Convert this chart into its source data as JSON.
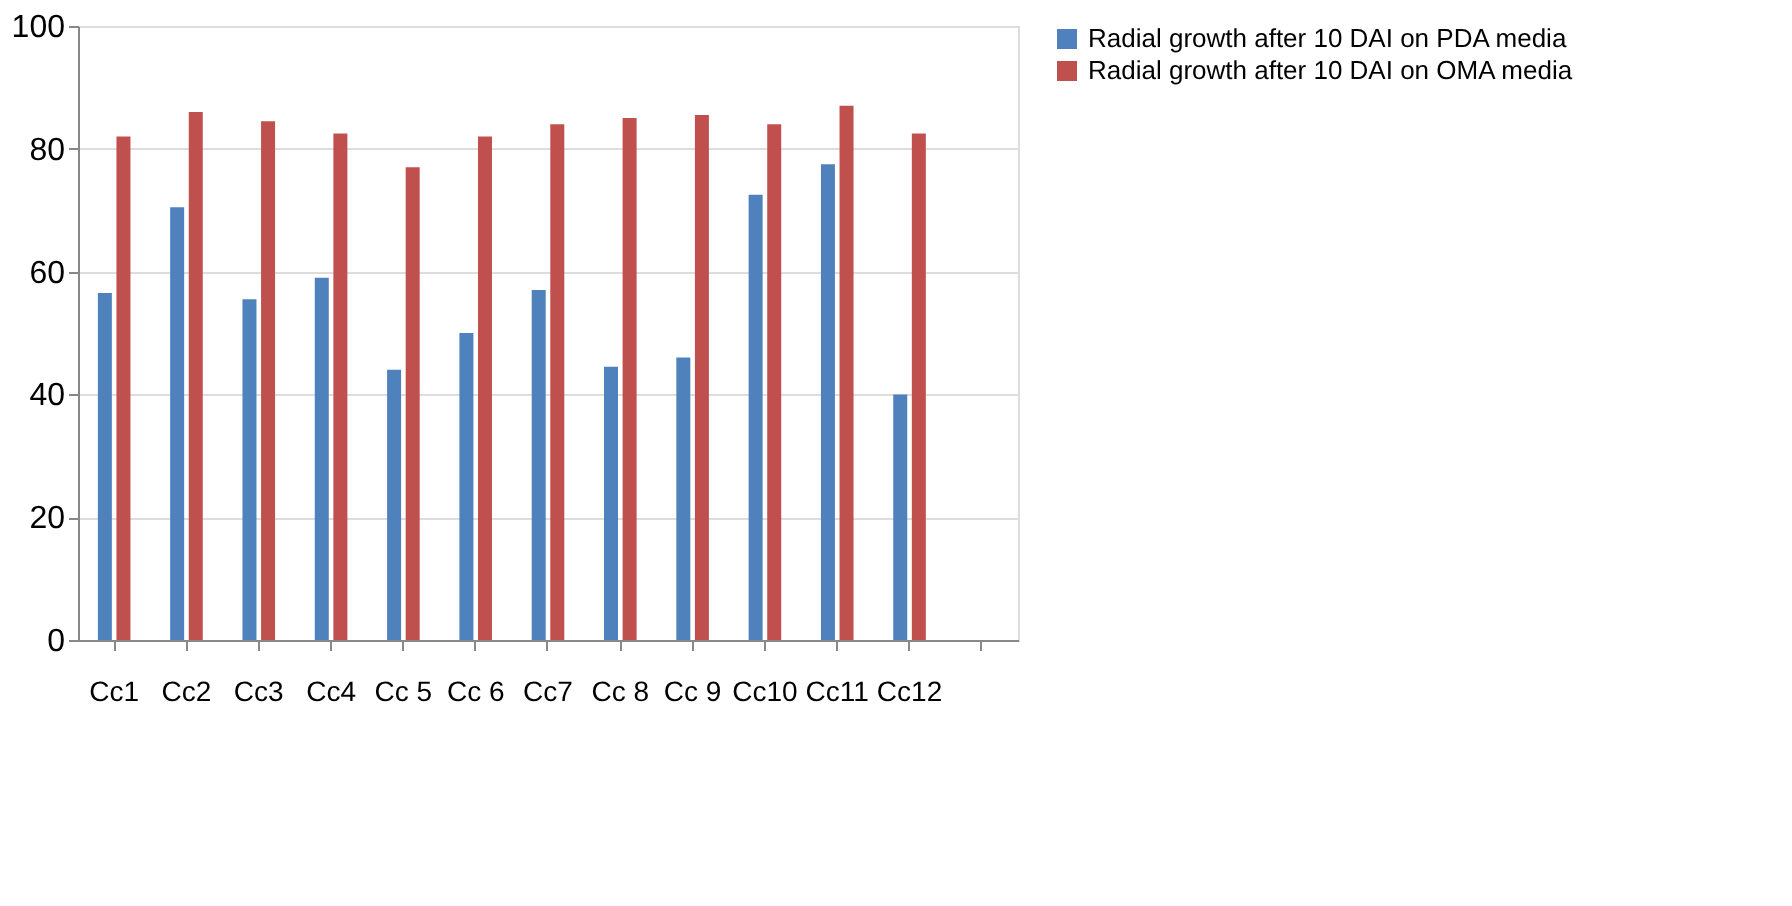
{
  "chart_data": {
    "type": "bar",
    "categories": [
      "Cc1",
      "Cc2",
      "Cc3",
      "Cc4",
      "Cc 5",
      "Cc 6",
      "Cc7",
      "Cc 8",
      "Cc 9",
      "Cc10",
      "Cc11",
      "Cc12",
      null
    ],
    "series": [
      {
        "name": "Radial growth after 10 DAI on PDA media",
        "color": "#4f81bd",
        "values": [
          56.5,
          70.5,
          55.5,
          59,
          44,
          50,
          57,
          44.5,
          46,
          72.5,
          77.5,
          40,
          null
        ]
      },
      {
        "name": "Radial growth after 10 DAI on OMA media",
        "color": "#c0504d",
        "values": [
          82,
          86,
          84.5,
          82.5,
          77,
          82,
          84,
          85,
          85.5,
          84,
          87,
          82.5,
          null
        ]
      }
    ],
    "ylim": [
      0,
      100
    ],
    "yticks": [
      0,
      20,
      40,
      60,
      80,
      100
    ],
    "grid": "y",
    "legend": "right"
  }
}
